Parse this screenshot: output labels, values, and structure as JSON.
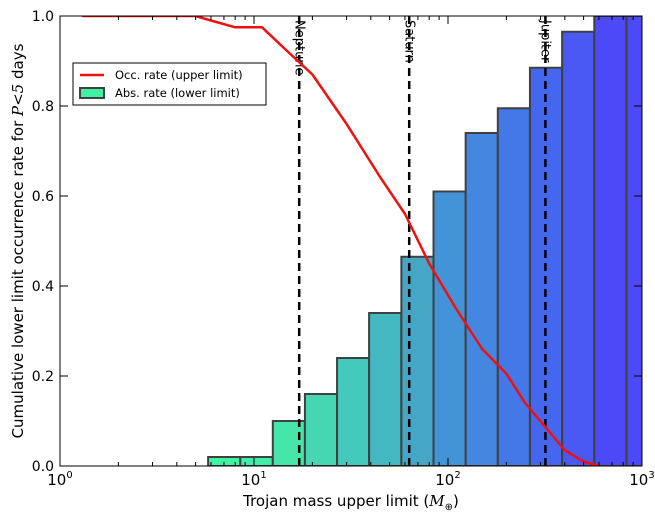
{
  "chart_data": {
    "type": "bar",
    "xlabel": "Trojan mass upper limit (",
    "xlabel_math": "M",
    "xlabel_sub": "⊕",
    "xlabel_close": ")",
    "ylabel": "Cumulative lower limit occurrence rate for ",
    "ylabel_math": "P<5",
    "ylabel_tail": " days",
    "x_scale": "log",
    "xlim": [
      1,
      1000
    ],
    "ylim": [
      0,
      1.0
    ],
    "grid": false,
    "legend_position": "upper-left",
    "x_ticks": [
      {
        "value": 1,
        "base": "10",
        "exp": "0"
      },
      {
        "value": 10,
        "base": "10",
        "exp": "1"
      },
      {
        "value": 100,
        "base": "10",
        "exp": "2"
      },
      {
        "value": 1000,
        "base": "10",
        "exp": "3"
      }
    ],
    "y_ticks": [
      "0.0",
      "0.2",
      "0.4",
      "0.6",
      "0.8",
      "1.0"
    ],
    "y_tick_values": [
      0,
      0.2,
      0.4,
      0.6,
      0.8,
      1.0
    ],
    "bars": {
      "name": "Abs. rate (lower limit)",
      "edges": [
        5.8,
        8.5,
        12.5,
        18.3,
        26.8,
        39.2,
        57.5,
        84.2,
        123.3,
        180.6,
        264.5,
        387.5,
        567.6,
        831.4,
        1217.9
      ],
      "values": [
        0.02,
        0.02,
        0.1,
        0.16,
        0.24,
        0.34,
        0.465,
        0.61,
        0.74,
        0.795,
        0.885,
        0.965,
        1.0,
        1.0
      ],
      "colors": [
        "#40f2a3",
        "#40eca7",
        "#46e6aa",
        "#46d6b2",
        "#43cabd",
        "#43b8c1",
        "#45a6c6",
        "#4393d9",
        "#4487e0",
        "#4477e8",
        "#4567ef",
        "#4a59f3",
        "#4c4af6",
        "#4c4af7"
      ],
      "edge_color": "#404040"
    },
    "line": {
      "name": "Occ. rate (upper limit)",
      "color": "#ee1111",
      "x": [
        1.3,
        5.0,
        6.0,
        8.0,
        11.0,
        15.0,
        20.0,
        30.0,
        45.0,
        60.0,
        80.0,
        110.0,
        150.0,
        200.0,
        250.0,
        320.0,
        400.0,
        500.0,
        600.0
      ],
      "y": [
        1.0,
        1.0,
        0.99,
        0.975,
        0.975,
        0.92,
        0.87,
        0.76,
        0.64,
        0.56,
        0.45,
        0.35,
        0.26,
        0.205,
        0.14,
        0.085,
        0.035,
        0.01,
        0.0
      ]
    },
    "vlines": [
      {
        "x": 17.1,
        "label": "Neptune"
      },
      {
        "x": 63.1,
        "label": "Saturn"
      },
      {
        "x": 317.8,
        "label": "Jupiter"
      }
    ]
  }
}
